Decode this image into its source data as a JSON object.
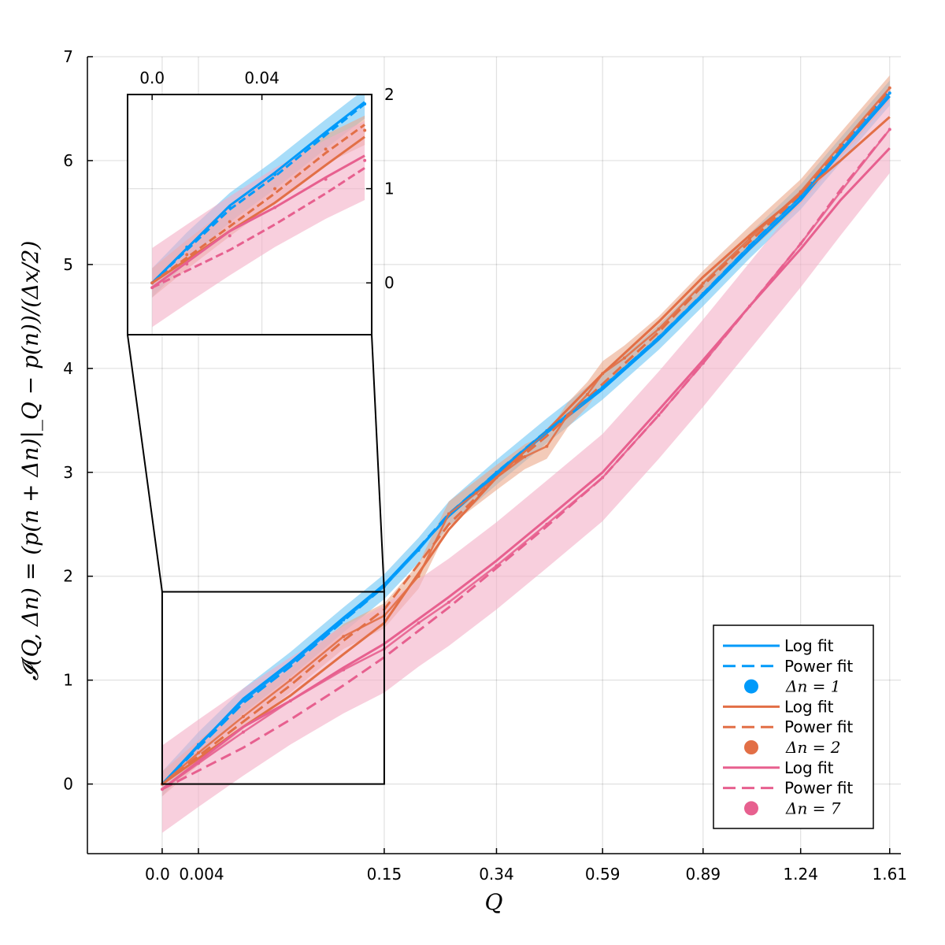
{
  "chart_data": {
    "type": "line",
    "xlabel": "Q",
    "ylabel": "𝓘(Q, Δn) = (p(n + Δn)|_Q − p(n))/(Δx/2)",
    "xlim": [
      -0.017,
      1.66
    ],
    "ylim": [
      -0.67,
      7.0
    ],
    "x_ticks": [
      0.0,
      0.004,
      0.15,
      0.34,
      0.59,
      0.89,
      1.24,
      1.61
    ],
    "x_tick_labels": [
      "0.0",
      "0.004",
      "0.15",
      "0.34",
      "0.59",
      "0.89",
      "1.24",
      "1.61"
    ],
    "y_ticks": [
      0,
      1,
      2,
      3,
      4,
      5,
      6,
      7
    ],
    "y_tick_labels": [
      "0",
      "1",
      "2",
      "3",
      "4",
      "5",
      "6",
      "7"
    ],
    "x_scale": "sqrt",
    "grid": true,
    "legend_position": "bottom-right",
    "legend": [
      {
        "label": "Log fit",
        "style": "solid",
        "color": "#009AFA"
      },
      {
        "label": "Power fit",
        "style": "dashed",
        "color": "#009AFA"
      },
      {
        "label": "Δn = 1",
        "style": "marker",
        "color": "#009AFA"
      },
      {
        "label": "Log fit",
        "style": "solid",
        "color": "#E26F46"
      },
      {
        "label": "Power fit",
        "style": "dashed",
        "color": "#E26F46"
      },
      {
        "label": "Δn = 2",
        "style": "marker",
        "color": "#E26F46"
      },
      {
        "label": "Log fit",
        "style": "solid",
        "color": "#E7608F"
      },
      {
        "label": "Power fit",
        "style": "dashed",
        "color": "#E7608F"
      },
      {
        "label": "Δn = 7",
        "style": "marker",
        "color": "#E7608F"
      }
    ],
    "series": [
      {
        "name": "Δn = 1",
        "color": "#009AFA",
        "band_color": "#6EC6F5",
        "x": [
          0.0,
          0.004,
          0.02,
          0.05,
          0.1,
          0.15,
          0.2,
          0.25,
          0.34,
          0.45,
          0.59,
          0.75,
          0.89,
          1.05,
          1.24,
          1.4,
          1.61
        ],
        "y": [
          0.0,
          0.38,
          0.8,
          1.15,
          1.58,
          1.9,
          2.25,
          2.6,
          3.0,
          3.4,
          3.82,
          4.3,
          4.72,
          5.18,
          5.65,
          6.1,
          6.65
        ],
        "band_half_width": 0.12
      },
      {
        "name": "Δn = 2",
        "color": "#E26F46",
        "band_color": "#EBA98A",
        "x": [
          0.0,
          0.004,
          0.02,
          0.05,
          0.1,
          0.15,
          0.2,
          0.25,
          0.3,
          0.34,
          0.4,
          0.45,
          0.5,
          0.55,
          0.59,
          0.65,
          0.75,
          0.89,
          1.05,
          1.24,
          1.4,
          1.61
        ],
        "y": [
          0.0,
          0.3,
          0.65,
          1.0,
          1.42,
          1.62,
          2.0,
          2.6,
          2.8,
          2.95,
          3.15,
          3.25,
          3.55,
          3.75,
          3.95,
          4.1,
          4.38,
          4.82,
          5.25,
          5.7,
          6.15,
          6.7
        ],
        "band_half_width": 0.12
      },
      {
        "name": "Δn = 7",
        "color": "#E7608F",
        "band_color": "#F3AFC7",
        "x": [
          0.0,
          0.004,
          0.02,
          0.05,
          0.1,
          0.15,
          0.2,
          0.25,
          0.34,
          0.45,
          0.59,
          0.75,
          0.89,
          1.05,
          1.24,
          1.4,
          1.61
        ],
        "y": [
          -0.05,
          0.2,
          0.5,
          0.8,
          1.1,
          1.3,
          1.55,
          1.75,
          2.1,
          2.5,
          2.95,
          3.55,
          4.05,
          4.6,
          5.2,
          5.7,
          6.3
        ],
        "band_half_width": 0.42
      }
    ],
    "fits": [
      {
        "series": "Δn = 1",
        "kind": "Log fit",
        "color": "#009AFA",
        "style": "solid",
        "x": [
          0.0,
          0.02,
          0.05,
          0.1,
          0.15,
          0.25,
          0.34,
          0.45,
          0.59,
          0.75,
          0.89,
          1.05,
          1.24,
          1.4,
          1.61
        ],
        "y": [
          0.0,
          0.82,
          1.17,
          1.6,
          1.92,
          2.58,
          2.98,
          3.38,
          3.8,
          4.28,
          4.7,
          5.15,
          5.62,
          6.08,
          6.62
        ]
      },
      {
        "series": "Δn = 1",
        "kind": "Power fit",
        "color": "#009AFA",
        "style": "dashed",
        "x": [
          0.0,
          0.02,
          0.05,
          0.1,
          0.15,
          0.25,
          0.34,
          0.45,
          0.59,
          0.75,
          0.89,
          1.05,
          1.24,
          1.4,
          1.61
        ],
        "y": [
          0.0,
          0.78,
          1.13,
          1.57,
          1.9,
          2.6,
          3.0,
          3.4,
          3.82,
          4.3,
          4.72,
          5.18,
          5.66,
          6.12,
          6.68
        ]
      },
      {
        "series": "Δn = 2",
        "kind": "Log fit",
        "color": "#E26F46",
        "style": "solid",
        "x": [
          0.0,
          0.02,
          0.05,
          0.1,
          0.15,
          0.25,
          0.34,
          0.45,
          0.59,
          0.75,
          0.89,
          1.05,
          1.24,
          1.4,
          1.61
        ],
        "y": [
          0.0,
          0.55,
          0.85,
          1.25,
          1.55,
          2.45,
          2.95,
          3.4,
          3.95,
          4.45,
          4.88,
          5.28,
          5.68,
          6.0,
          6.42
        ]
      },
      {
        "series": "Δn = 2",
        "kind": "Power fit",
        "color": "#E26F46",
        "style": "dashed",
        "x": [
          0.0,
          0.02,
          0.05,
          0.1,
          0.15,
          0.25,
          0.34,
          0.45,
          0.59,
          0.75,
          0.89,
          1.05,
          1.24,
          1.4,
          1.61
        ],
        "y": [
          0.0,
          0.6,
          0.95,
          1.38,
          1.68,
          2.5,
          2.95,
          3.35,
          3.85,
          4.35,
          4.8,
          5.22,
          5.68,
          6.12,
          6.68
        ]
      },
      {
        "series": "Δn = 7",
        "kind": "Log fit",
        "color": "#E7608F",
        "style": "solid",
        "x": [
          0.0,
          0.02,
          0.05,
          0.1,
          0.15,
          0.25,
          0.34,
          0.45,
          0.59,
          0.75,
          0.89,
          1.05,
          1.24,
          1.4,
          1.61
        ],
        "y": [
          -0.05,
          0.55,
          0.8,
          1.12,
          1.35,
          1.8,
          2.15,
          2.55,
          3.0,
          3.6,
          4.08,
          4.6,
          5.15,
          5.62,
          6.12
        ]
      },
      {
        "series": "Δn = 7",
        "kind": "Power fit",
        "color": "#E7608F",
        "style": "dashed",
        "x": [
          0.0,
          0.02,
          0.05,
          0.1,
          0.15,
          0.25,
          0.34,
          0.45,
          0.59,
          0.75,
          0.89,
          1.05,
          1.24,
          1.4,
          1.61
        ],
        "y": [
          -0.05,
          0.35,
          0.62,
          0.95,
          1.22,
          1.7,
          2.08,
          2.48,
          2.95,
          3.55,
          4.05,
          4.6,
          5.2,
          5.72,
          6.3
        ]
      }
    ],
    "inset": {
      "x_tick_labels": [
        "0.0",
        "0.04"
      ],
      "y_tick_labels": [
        "0",
        "1",
        "2"
      ],
      "x_ticks": [
        0.0,
        0.04
      ],
      "y_ticks": [
        0,
        1,
        2
      ],
      "xlim": [
        -0.002,
        0.16
      ],
      "ylim": [
        -0.55,
        2.0
      ],
      "zoom_region_x": [
        0.0,
        0.15
      ],
      "zoom_region_y": [
        0.0,
        1.85
      ]
    }
  }
}
